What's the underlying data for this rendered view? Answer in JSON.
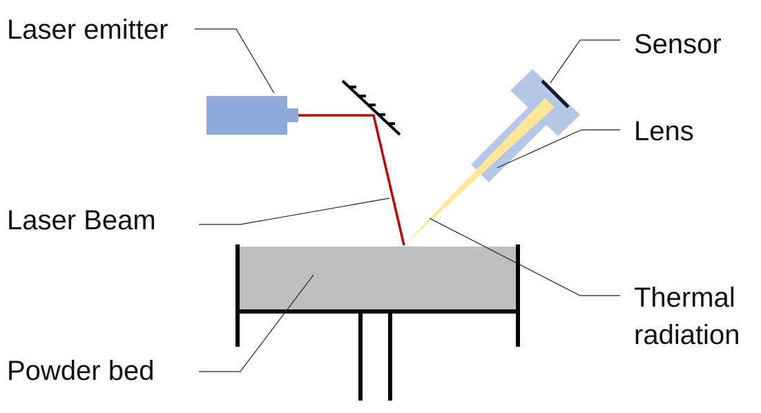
{
  "labels": {
    "laser_emitter": "Laser emitter",
    "sensor": "Sensor",
    "lens": "Lens",
    "laser_beam": "Laser Beam",
    "thermal_line1": "Thermal",
    "thermal_line2": "radiation",
    "powder_bed": "Powder bed"
  },
  "colors": {
    "emitter_blue": "#8EAADB",
    "sensor_blue": "#B4C7E7",
    "beam_red": "#C00000",
    "radiation_yellow": "#FFE699",
    "bed_gray": "#BFBFBF",
    "outline_black": "#000000",
    "leader_line": "#222222"
  }
}
